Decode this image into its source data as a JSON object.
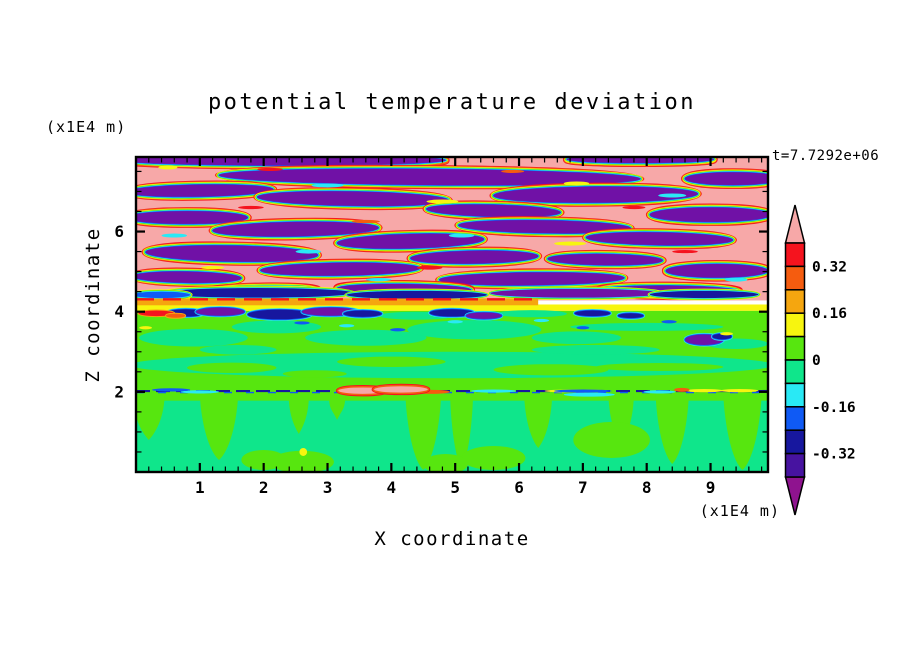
{
  "figure": {
    "title": "potential temperature deviation",
    "y_unit_label": "(x1E4 m)",
    "x_unit_label": "(x1E4 m)",
    "time_annotation": "t=7.7292e+06",
    "xlabel": "X coordinate",
    "ylabel": "Z coordinate"
  },
  "chart_data": {
    "type": "heatmap",
    "title": "potential temperature deviation",
    "xlabel": "X coordinate",
    "ylabel": "Z coordinate",
    "x_axis_unit": "(x1E4 m)",
    "y_axis_unit": "(x1E4 m)",
    "time_annotation": "t=7.7292e+06",
    "x_range": [
      0,
      9.9
    ],
    "z_range": [
      0,
      7.86
    ],
    "x_major_ticks": [
      1,
      2,
      3,
      4,
      5,
      6,
      7,
      8,
      9
    ],
    "x_minor_step": 0.2,
    "z_major_ticks": [
      2,
      4,
      6
    ],
    "z_minor_step": 0.5,
    "grid": false,
    "colorbar": {
      "orientation": "vertical",
      "levels": [
        0.4,
        0.32,
        0.24,
        0.16,
        0.08,
        0,
        -0.08,
        -0.16,
        -0.24,
        -0.32,
        -0.4
      ],
      "tick_labels": [
        "0.32",
        "0.16",
        "0",
        "-0.16",
        "-0.32"
      ],
      "tick_boundary_index": [
        1,
        3,
        5,
        7,
        9
      ],
      "segment_colors": [
        "#F5131E",
        "#F55C0F",
        "#F5A60F",
        "#F7F50F",
        "#57E60F",
        "#0FE68B",
        "#29E9F5",
        "#0F5AF5",
        "#17179E",
        "#4713A0"
      ],
      "over_color": "#F7A8A8",
      "under_color": "#8F138F"
    },
    "palette": {
      "pink": "#F7A8A8",
      "red": "#F5131E",
      "orangered": "#F55C0F",
      "orange": "#F5A60F",
      "yellow": "#F7F50F",
      "lime": "#57E60F",
      "teal": "#0FE68B",
      "cyan": "#29E9F5",
      "blue": "#0F5AF5",
      "navy": "#17179E",
      "violet": "#4713A0",
      "magenta": "#8F138F",
      "purple": "#7011A6",
      "frame": "#000000"
    },
    "field": {
      "upper_region": {
        "z_min": 4.28,
        "z_max": 7.86,
        "base": "pink",
        "rim_sequence": [
          [
            "red",
            8
          ],
          [
            "orangered",
            6.6
          ],
          [
            "yellow",
            5.2
          ],
          [
            "lime",
            3.8
          ],
          [
            "cyan",
            2.5
          ],
          [
            "blue",
            1.3
          ]
        ],
        "purple_lenses": [
          [
            2.3,
            7.78,
            2.55,
            0.13,
            0
          ],
          [
            7.9,
            7.8,
            1.15,
            0.09,
            0
          ],
          [
            4.6,
            7.36,
            3.3,
            0.2,
            0.5
          ],
          [
            9.35,
            7.32,
            0.75,
            0.16,
            0
          ],
          [
            1.0,
            7.02,
            1.15,
            0.15,
            -1
          ],
          [
            3.4,
            6.82,
            1.5,
            0.18,
            1
          ],
          [
            7.2,
            6.92,
            1.6,
            0.2,
            -0.5
          ],
          [
            5.6,
            6.52,
            1.05,
            0.15,
            1.5
          ],
          [
            0.8,
            6.35,
            0.95,
            0.16,
            0
          ],
          [
            9.0,
            6.42,
            0.95,
            0.18,
            0
          ],
          [
            2.5,
            6.06,
            1.3,
            0.18,
            -1
          ],
          [
            6.4,
            6.12,
            1.35,
            0.16,
            1
          ],
          [
            4.3,
            5.76,
            1.15,
            0.18,
            -1.5
          ],
          [
            8.2,
            5.82,
            1.15,
            0.16,
            1
          ],
          [
            1.5,
            5.45,
            1.35,
            0.2,
            1
          ],
          [
            5.3,
            5.36,
            1.0,
            0.16,
            -1
          ],
          [
            7.35,
            5.3,
            0.9,
            0.14,
            0.8
          ],
          [
            3.2,
            5.06,
            1.25,
            0.16,
            -0.8
          ],
          [
            9.1,
            5.02,
            0.8,
            0.17,
            0
          ],
          [
            0.8,
            4.86,
            0.85,
            0.14,
            1
          ],
          [
            6.2,
            4.82,
            1.45,
            0.16,
            -0.6
          ],
          [
            4.2,
            4.56,
            1.05,
            0.13,
            0.7
          ],
          [
            2.0,
            4.52,
            0.85,
            0.11,
            -0.7
          ],
          [
            8.35,
            4.52,
            1.1,
            0.13,
            0.5
          ]
        ],
        "speckles": [
          [
            0.5,
            7.6,
            0.15,
            0.05,
            "yellow"
          ],
          [
            2.1,
            7.55,
            0.2,
            0.04,
            "red"
          ],
          [
            3.0,
            7.15,
            0.25,
            0.05,
            "cyan"
          ],
          [
            5.9,
            7.5,
            0.18,
            0.04,
            "orangered"
          ],
          [
            6.9,
            7.2,
            0.2,
            0.05,
            "yellow"
          ],
          [
            8.4,
            6.9,
            0.22,
            0.05,
            "cyan"
          ],
          [
            1.8,
            6.6,
            0.2,
            0.04,
            "red"
          ],
          [
            4.8,
            6.75,
            0.25,
            0.05,
            "yellow"
          ],
          [
            7.8,
            6.6,
            0.18,
            0.04,
            "red"
          ],
          [
            0.6,
            5.9,
            0.2,
            0.05,
            "cyan"
          ],
          [
            3.6,
            6.25,
            0.22,
            0.04,
            "orangered"
          ],
          [
            5.1,
            5.9,
            0.2,
            0.05,
            "cyan"
          ],
          [
            6.8,
            5.7,
            0.25,
            0.05,
            "yellow"
          ],
          [
            2.7,
            5.5,
            0.2,
            0.05,
            "cyan"
          ],
          [
            8.6,
            5.5,
            0.2,
            0.04,
            "red"
          ],
          [
            1.2,
            5.1,
            0.18,
            0.04,
            "yellow"
          ],
          [
            4.6,
            5.1,
            0.2,
            0.05,
            "red"
          ],
          [
            9.4,
            4.8,
            0.18,
            0.05,
            "cyan"
          ],
          [
            3.8,
            4.8,
            0.2,
            0.04,
            "cyan"
          ],
          [
            6.6,
            4.5,
            0.25,
            0.05,
            "yellow"
          ]
        ],
        "dark_interface_row": {
          "rims": [
            [
              "yellow",
              4.5
            ],
            [
              "lime",
              3
            ],
            [
              "cyan",
              1.6
            ]
          ],
          "blobs": [
            [
              1.9,
              4.47,
              1.5,
              0.12,
              "navy"
            ],
            [
              4.4,
              4.42,
              1.1,
              0.1,
              "navy"
            ],
            [
              6.9,
              4.46,
              1.35,
              0.11,
              "purple"
            ],
            [
              8.9,
              4.43,
              0.85,
              0.09,
              "navy"
            ],
            [
              0.4,
              4.42,
              0.45,
              0.08,
              "blue"
            ]
          ]
        }
      },
      "shear_stripe": {
        "red_dash_z": 4.31,
        "orange_band": {
          "x": [
            0,
            6.3
          ],
          "z": [
            4.16,
            4.33
          ]
        },
        "yellow_band": {
          "x": [
            0,
            9.9
          ],
          "z": [
            4.02,
            4.18
          ]
        }
      },
      "mid_region": {
        "z_min": 2.02,
        "z_max": 4.02,
        "base": "lime",
        "teal_band": [
          4.95,
          2.67,
          5.05,
          0.33
        ],
        "teal_islands": [
          [
            0.9,
            3.35,
            0.85,
            0.22
          ],
          [
            2.2,
            3.62,
            0.7,
            0.16
          ],
          [
            3.6,
            3.35,
            0.95,
            0.2
          ],
          [
            5.3,
            3.55,
            1.05,
            0.24
          ],
          [
            7.2,
            3.05,
            1.0,
            0.12
          ],
          [
            8.0,
            3.62,
            1.2,
            0.1
          ],
          [
            6.9,
            3.35,
            0.7,
            0.16
          ],
          [
            9.4,
            3.2,
            0.5,
            0.13
          ],
          [
            4.4,
            3.9,
            0.6,
            0.1
          ],
          [
            6.2,
            3.95,
            0.55,
            0.09
          ],
          [
            1.6,
            3.05,
            0.6,
            0.12
          ]
        ],
        "lime_islands": [
          [
            1.5,
            2.6,
            0.7,
            0.13
          ],
          [
            4.0,
            2.75,
            0.85,
            0.13
          ],
          [
            6.5,
            2.55,
            0.9,
            0.14
          ],
          [
            8.2,
            2.62,
            1.0,
            0.1
          ],
          [
            2.8,
            2.45,
            0.5,
            0.09
          ]
        ],
        "dark_blobs_rims": [
          [
            "cyan",
            3
          ],
          [
            "blue",
            1.6
          ]
        ],
        "dark_blobs": [
          [
            0.78,
            3.97,
            0.3,
            0.09,
            "navy"
          ],
          [
            1.32,
            4.0,
            0.38,
            0.1,
            "purple"
          ],
          [
            2.25,
            3.93,
            0.5,
            0.12,
            "navy"
          ],
          [
            3.05,
            4.0,
            0.45,
            0.1,
            "purple"
          ],
          [
            3.55,
            3.95,
            0.3,
            0.08,
            "navy"
          ],
          [
            4.95,
            3.97,
            0.35,
            0.09,
            "navy"
          ],
          [
            5.45,
            3.9,
            0.28,
            0.08,
            "purple"
          ],
          [
            7.15,
            3.96,
            0.28,
            0.07,
            "navy"
          ],
          [
            7.75,
            3.9,
            0.2,
            0.06,
            "navy"
          ],
          [
            8.9,
            3.3,
            0.3,
            0.13,
            "purple"
          ],
          [
            9.18,
            3.38,
            0.15,
            0.07,
            "navy"
          ]
        ],
        "warm_flecks": [
          [
            0.32,
            3.96,
            0.28,
            0.07,
            "red"
          ],
          [
            0.62,
            3.9,
            0.15,
            0.05,
            "orangered"
          ]
        ],
        "speckles": [
          [
            8.35,
            3.75,
            0.12,
            0.04,
            "blue"
          ],
          [
            7.0,
            3.6,
            0.1,
            0.04,
            "blue"
          ],
          [
            4.1,
            3.55,
            0.12,
            0.04,
            "blue"
          ],
          [
            2.6,
            3.72,
            0.12,
            0.04,
            "blue"
          ],
          [
            5.0,
            3.75,
            0.12,
            0.04,
            "cyan"
          ],
          [
            6.35,
            3.78,
            0.12,
            0.04,
            "cyan"
          ],
          [
            3.3,
            3.65,
            0.12,
            0.04,
            "cyan"
          ],
          [
            9.25,
            3.45,
            0.1,
            0.04,
            "yellow"
          ],
          [
            0.15,
            3.6,
            0.1,
            0.04,
            "yellow"
          ]
        ]
      },
      "inversion_line": {
        "z": 2.02,
        "color": "navy",
        "dash": [
          14,
          6
        ],
        "pink_rims": [
          [
            "red",
            5
          ],
          [
            "orangered",
            3
          ]
        ],
        "pink_blobs": [
          [
            3.55,
            2.03,
            0.38,
            0.08
          ],
          [
            4.15,
            2.06,
            0.42,
            0.08
          ]
        ],
        "segments": [
          [
            1.0,
            2.0,
            0.3,
            0.04,
            "cyan"
          ],
          [
            5.6,
            2.02,
            0.35,
            0.04,
            "cyan"
          ],
          [
            7.1,
            1.93,
            0.4,
            0.05,
            "cyan"
          ],
          [
            8.2,
            2.0,
            0.25,
            0.04,
            "cyan"
          ],
          [
            6.9,
            2.02,
            0.5,
            0.04,
            "yellow"
          ],
          [
            9.45,
            2.03,
            0.3,
            0.04,
            "yellow"
          ],
          [
            8.9,
            2.03,
            0.3,
            0.04,
            "yellow"
          ],
          [
            8.55,
            2.05,
            0.12,
            0.05,
            "orangered"
          ],
          [
            4.62,
            2.0,
            0.3,
            0.05,
            "orangered"
          ],
          [
            7.0,
            2.02,
            0.45,
            0.04,
            "blue"
          ],
          [
            0.55,
            2.05,
            0.3,
            0.04,
            "blue"
          ]
        ]
      },
      "bottom_region": {
        "z_min": 0,
        "z_max": 2.02,
        "base": "teal",
        "lime_top_strip_z": [
          1.78,
          2.02
        ],
        "lime_columns": [
          [
            0.2,
            0.25,
            0.8
          ],
          [
            1.3,
            0.3,
            0.3
          ],
          [
            2.55,
            0.16,
            0.95
          ],
          [
            3.15,
            0.13,
            1.3
          ],
          [
            4.5,
            0.28,
            0.05
          ],
          [
            5.1,
            0.18,
            0.1
          ],
          [
            6.3,
            0.22,
            0.6
          ],
          [
            7.6,
            0.2,
            0.7
          ],
          [
            8.4,
            0.26,
            0.2
          ],
          [
            9.5,
            0.3,
            0.05
          ]
        ],
        "lime_blobs": [
          [
            7.45,
            0.8,
            0.6,
            0.45
          ],
          [
            2.0,
            0.3,
            0.35,
            0.25
          ],
          [
            5.6,
            0.35,
            0.5,
            0.3
          ],
          [
            2.6,
            0.25,
            0.5,
            0.28
          ],
          [
            4.85,
            0.2,
            0.35,
            0.25
          ]
        ],
        "yellow_flecks": [
          [
            2.62,
            0.5,
            0.06,
            0.1
          ]
        ]
      }
    }
  }
}
